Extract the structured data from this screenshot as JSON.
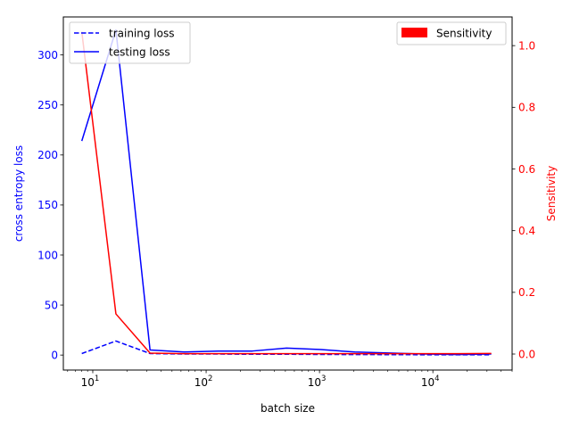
{
  "chart_data": {
    "type": "line",
    "title": "",
    "xlabel": "batch size",
    "x_scale": "log",
    "xlim": [
      5.5,
      50000
    ],
    "x_ticks": [
      {
        "value": 10,
        "label": "10",
        "exp": "1"
      },
      {
        "value": 100,
        "label": "10",
        "exp": "2"
      },
      {
        "value": 1000,
        "label": "10",
        "exp": "3"
      },
      {
        "value": 10000,
        "label": "10",
        "exp": "4"
      }
    ],
    "y_left": {
      "label": "cross entropy loss",
      "color": "#0000ff",
      "lim": [
        -15,
        338
      ],
      "ticks": [
        0,
        50,
        100,
        150,
        200,
        250,
        300
      ]
    },
    "y_right": {
      "label": "Sensitivity",
      "color": "#ff0000",
      "lim": [
        -0.052,
        1.093
      ],
      "ticks": [
        0.0,
        0.2,
        0.4,
        0.6,
        0.8,
        1.0
      ],
      "tick_labels": [
        "0.0",
        "0.2",
        "0.4",
        "0.6",
        "0.8",
        "1.0"
      ]
    },
    "x": [
      8,
      16,
      32,
      64,
      128,
      256,
      512,
      1024,
      2048,
      4096,
      8192,
      16384,
      32768
    ],
    "series": [
      {
        "name": "training loss",
        "axis": "left",
        "color": "#0000ff",
        "style": "dashed",
        "values": [
          1.5,
          14,
          1.5,
          1,
          1,
          0.8,
          0.8,
          0.6,
          0.5,
          0.4,
          0.3,
          0.3,
          0.3
        ]
      },
      {
        "name": "testing loss",
        "axis": "left",
        "color": "#0000ff",
        "style": "solid",
        "values": [
          214,
          325,
          5,
          3,
          4,
          4,
          7,
          5.5,
          3,
          2,
          1,
          0.5,
          1
        ]
      },
      {
        "name": "Sensitivity",
        "axis": "right",
        "color": "#ff0000",
        "style": "solid",
        "values": [
          1.045,
          0.13,
          0.003,
          0.001,
          0.001,
          0.001,
          0.001,
          0.001,
          0.001,
          0.001,
          0.001,
          0.001,
          0.002
        ]
      }
    ],
    "legend_left": {
      "placement": "top-left",
      "entries": [
        "training loss",
        "testing loss"
      ]
    },
    "legend_right": {
      "placement": "top-right",
      "entries": [
        "Sensitivity"
      ]
    },
    "grid": false
  }
}
